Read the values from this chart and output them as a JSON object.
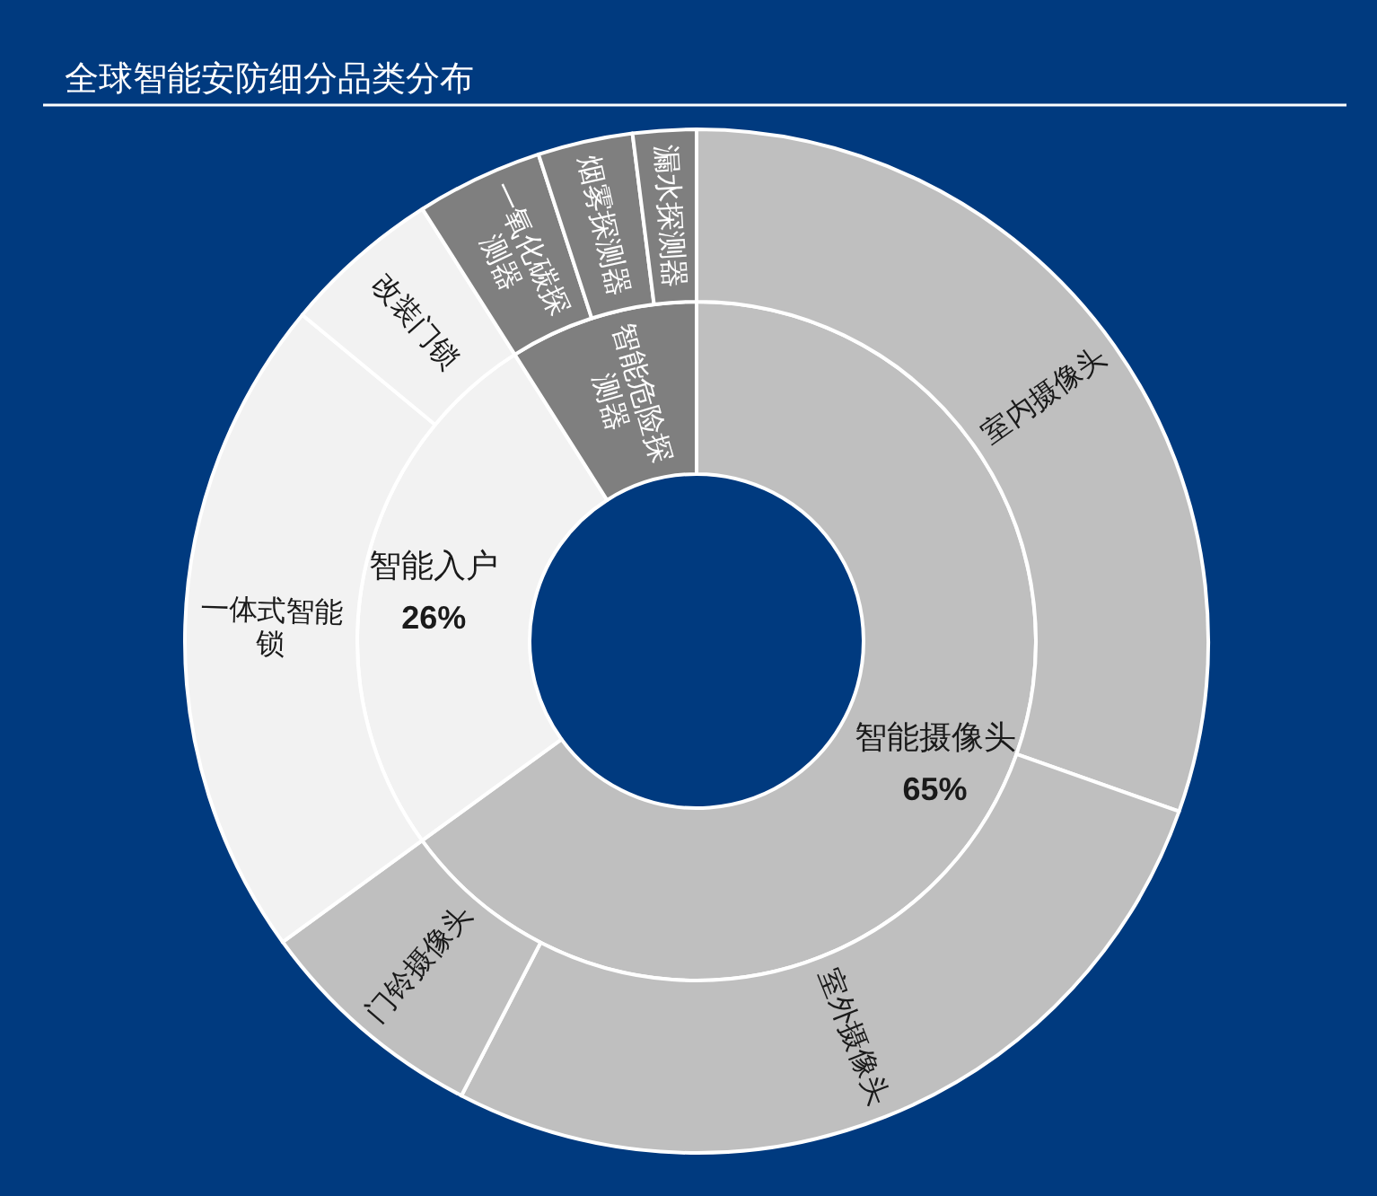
{
  "chart_data": [
    {
      "type": "donut",
      "title": "全球智能安防细分品类分布",
      "categories": [
        "智能摄像头",
        "智能入户",
        "智能危险探测器"
      ],
      "values": [
        65,
        26,
        9
      ],
      "value_labels": [
        "65%",
        "26%",
        null
      ],
      "colors": [
        "#bfbfbf",
        "#f2f2f2",
        "#7f7f7f"
      ]
    },
    {
      "type": "donut",
      "categories": [
        "室内摄像头",
        "室外摄像头",
        "门铃摄像头",
        "一体式智能锁",
        "改装门锁",
        "一氧化碳探测器",
        "烟雾探测器",
        "漏水探测器"
      ],
      "values": [
        30.4,
        27.2,
        7.4,
        21.0,
        5.0,
        4.0,
        3.0,
        2.0
      ],
      "colors": [
        "#bfbfbf",
        "#bfbfbf",
        "#bfbfbf",
        "#f2f2f2",
        "#f2f2f2",
        "#7f7f7f",
        "#7f7f7f",
        "#7f7f7f"
      ]
    }
  ]
}
